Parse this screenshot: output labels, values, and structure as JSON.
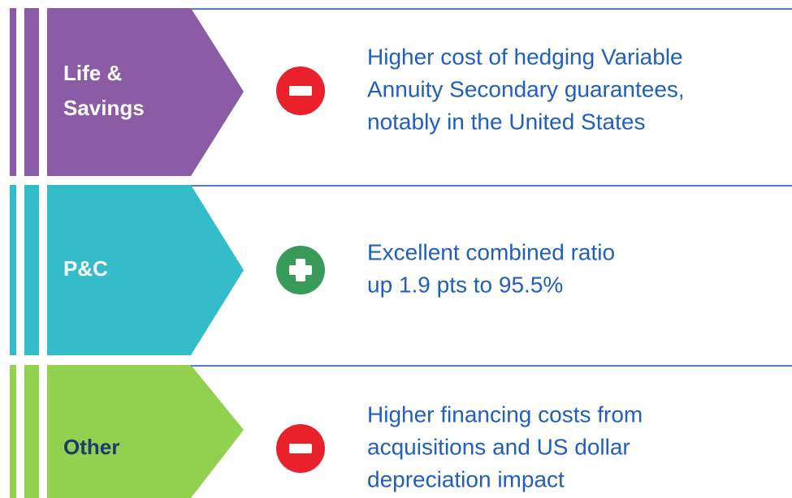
{
  "rows": [
    {
      "label": [
        "Life &",
        "Savings"
      ],
      "text": [
        "Higher cost of hedging Variable",
        "Annuity Secondary guarantees,",
        "notably in the United States"
      ]
    },
    {
      "label": [
        "P&C"
      ],
      "text": [
        "Excellent combined ratio",
        "up 1.9 pts to 95.5%"
      ]
    },
    {
      "label": [
        "Other"
      ],
      "text": [
        "Higher financing costs from",
        "acquisitions and US dollar",
        "depreciation impact"
      ]
    }
  ]
}
